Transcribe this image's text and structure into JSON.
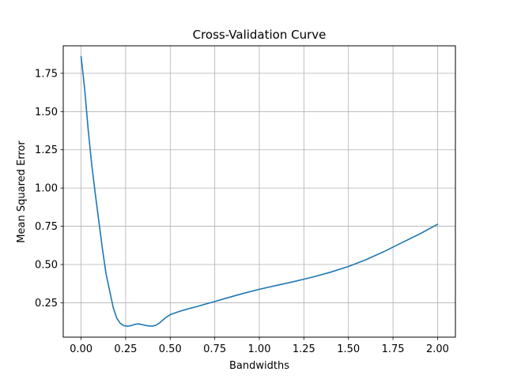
{
  "chart_data": {
    "type": "line",
    "title": "Cross-Validation Curve",
    "xlabel": "Bandwidths",
    "ylabel": "Mean Squared Error",
    "xlim": [
      -0.1,
      2.1
    ],
    "ylim": [
      0.025,
      1.93
    ],
    "grid": true,
    "xticks": [
      0.0,
      0.25,
      0.5,
      0.75,
      1.0,
      1.25,
      1.5,
      1.75,
      2.0
    ],
    "xtick_labels": [
      "0.00",
      "0.25",
      "0.50",
      "0.75",
      "1.00",
      "1.25",
      "1.50",
      "1.75",
      "2.00"
    ],
    "yticks": [
      0.25,
      0.5,
      0.75,
      1.0,
      1.25,
      1.5,
      1.75
    ],
    "ytick_labels": [
      "0.25",
      "0.50",
      "0.75",
      "1.00",
      "1.25",
      "1.50",
      "1.75"
    ],
    "colors": {
      "line": "#1f77b4",
      "grid": "#b0b0b0",
      "axes": "#000000"
    },
    "series": [
      {
        "x": [
          0.0,
          0.02,
          0.04,
          0.06,
          0.08,
          0.1,
          0.12,
          0.14,
          0.16,
          0.18,
          0.2,
          0.22,
          0.24,
          0.26,
          0.28,
          0.3,
          0.32,
          0.34,
          0.36,
          0.38,
          0.4,
          0.42,
          0.44,
          0.46,
          0.48,
          0.5,
          0.55,
          0.6,
          0.65,
          0.7,
          0.75,
          0.8,
          0.9,
          1.0,
          1.1,
          1.2,
          1.3,
          1.4,
          1.5,
          1.6,
          1.7,
          1.8,
          1.9,
          2.0
        ],
        "y": [
          1.86,
          1.65,
          1.38,
          1.15,
          0.96,
          0.78,
          0.6,
          0.44,
          0.33,
          0.22,
          0.15,
          0.115,
          0.1,
          0.097,
          0.1,
          0.108,
          0.112,
          0.108,
          0.102,
          0.098,
          0.097,
          0.103,
          0.118,
          0.138,
          0.157,
          0.172,
          0.193,
          0.21,
          0.225,
          0.242,
          0.258,
          0.275,
          0.308,
          0.338,
          0.364,
          0.39,
          0.418,
          0.45,
          0.487,
          0.532,
          0.585,
          0.643,
          0.7,
          0.763
        ]
      }
    ]
  }
}
